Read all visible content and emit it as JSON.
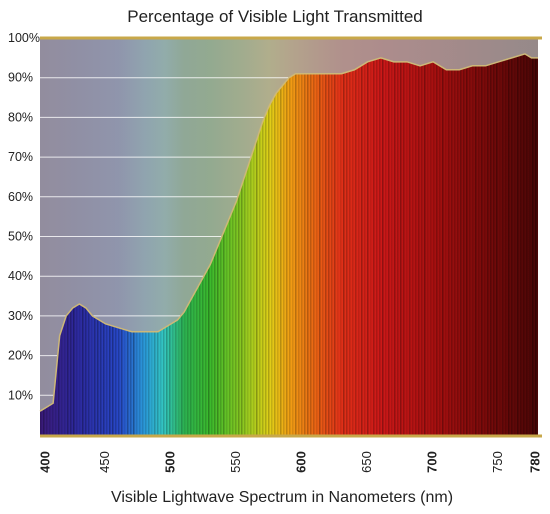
{
  "chart_data": {
    "type": "area",
    "title": "Percentage of Visible Light Transmitted",
    "xlabel": "Visible Lightwave Spectrum in Nanometers (nm)",
    "ylabel": "",
    "xlim": [
      400,
      780
    ],
    "ylim": [
      0,
      100
    ],
    "x_ticks": [
      {
        "value": 400,
        "label": "400",
        "bold": true
      },
      {
        "value": 450,
        "label": "450",
        "bold": false
      },
      {
        "value": 500,
        "label": "500",
        "bold": true
      },
      {
        "value": 550,
        "label": "550",
        "bold": false
      },
      {
        "value": 600,
        "label": "600",
        "bold": true
      },
      {
        "value": 650,
        "label": "650",
        "bold": false
      },
      {
        "value": 700,
        "label": "700",
        "bold": true
      },
      {
        "value": 750,
        "label": "750",
        "bold": false
      },
      {
        "value": 780,
        "label": "780",
        "bold": true
      }
    ],
    "y_ticks": [
      {
        "value": 10,
        "label": "10%"
      },
      {
        "value": 20,
        "label": "20%"
      },
      {
        "value": 30,
        "label": "30%"
      },
      {
        "value": 40,
        "label": "40%"
      },
      {
        "value": 50,
        "label": "50%"
      },
      {
        "value": 60,
        "label": "60%"
      },
      {
        "value": 70,
        "label": "70%"
      },
      {
        "value": 80,
        "label": "80%"
      },
      {
        "value": 90,
        "label": "90%"
      },
      {
        "value": 100,
        "label": "100%"
      }
    ],
    "grid": true,
    "fill": "visible-spectrum",
    "colors": {
      "outline": "#cdb878",
      "frame": "#c8a84a",
      "grid": "#ffffff",
      "background": "#a6a6a6"
    },
    "x": [
      400,
      405,
      410,
      415,
      420,
      425,
      430,
      435,
      440,
      450,
      460,
      470,
      480,
      490,
      500,
      505,
      510,
      515,
      520,
      530,
      540,
      550,
      560,
      570,
      575,
      580,
      585,
      590,
      595,
      600,
      610,
      620,
      630,
      640,
      650,
      660,
      670,
      680,
      690,
      700,
      710,
      720,
      730,
      740,
      750,
      760,
      770,
      775,
      780
    ],
    "values": [
      6,
      7,
      8,
      25,
      30,
      32,
      33,
      32,
      30,
      28,
      27,
      26,
      26,
      26,
      28,
      29,
      31,
      34,
      37,
      43,
      51,
      59,
      69,
      79,
      83,
      86,
      88,
      90,
      91,
      91,
      91,
      91,
      91,
      92,
      94,
      95,
      94,
      94,
      93,
      94,
      92,
      92,
      93,
      93,
      94,
      95,
      96,
      95,
      95
    ]
  }
}
